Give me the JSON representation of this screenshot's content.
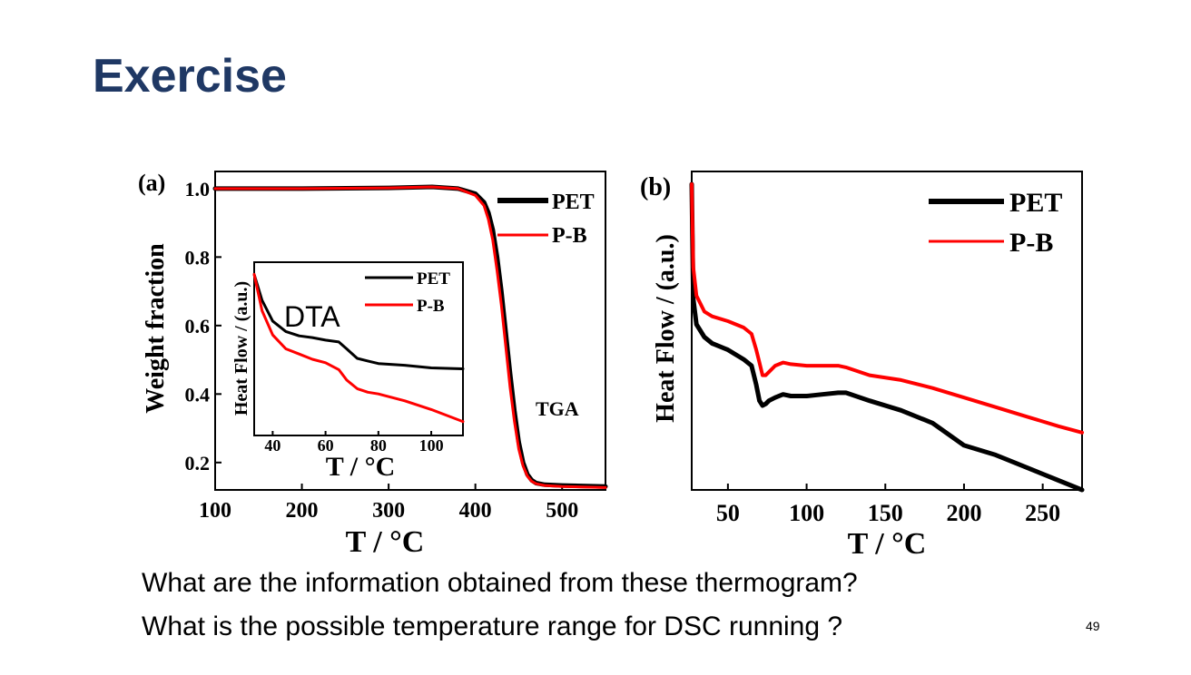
{
  "slide": {
    "title": "Exercise",
    "questions": [
      "What are the information obtained from these thermogram?",
      "What is the possible temperature range for DSC running ?"
    ],
    "page_number": "49"
  },
  "colors": {
    "title": "#1f3864",
    "PET": "#000000",
    "P-B": "#ff0000"
  },
  "chart_data": [
    {
      "id": "a",
      "panel_label": "(a)",
      "type": "line",
      "title": "",
      "xlabel": "T / °C",
      "ylabel": "Weight fraction",
      "xlim": [
        100,
        550
      ],
      "ylim": [
        0.12,
        1.05
      ],
      "xticks": [
        100,
        200,
        300,
        400,
        500
      ],
      "yticks": [
        0.2,
        0.4,
        0.6,
        0.8,
        1.0
      ],
      "ytick_labels": [
        "0.2",
        "0.4",
        "0.6",
        "0.8",
        "1.0"
      ],
      "annotation": "TGA",
      "legend": [
        "PET",
        "P-B"
      ],
      "series": [
        {
          "name": "PET",
          "color": "#000000",
          "x": [
            100,
            200,
            300,
            350,
            380,
            400,
            410,
            415,
            420,
            425,
            430,
            435,
            440,
            445,
            450,
            455,
            460,
            465,
            470,
            480,
            500,
            550
          ],
          "y": [
            1.0,
            1.0,
            1.002,
            1.005,
            1.0,
            0.985,
            0.96,
            0.93,
            0.88,
            0.8,
            0.7,
            0.58,
            0.46,
            0.35,
            0.26,
            0.2,
            0.165,
            0.148,
            0.14,
            0.135,
            0.133,
            0.13
          ]
        },
        {
          "name": "P-B",
          "color": "#ff0000",
          "x": [
            100,
            200,
            300,
            350,
            380,
            400,
            410,
            415,
            420,
            425,
            430,
            435,
            440,
            445,
            450,
            455,
            460,
            465,
            470,
            480,
            500,
            550
          ],
          "y": [
            1.0,
            1.0,
            1.002,
            1.005,
            1.0,
            0.98,
            0.95,
            0.91,
            0.85,
            0.76,
            0.66,
            0.54,
            0.42,
            0.32,
            0.24,
            0.19,
            0.16,
            0.145,
            0.138,
            0.133,
            0.13,
            0.127
          ]
        }
      ]
    },
    {
      "id": "a-inset",
      "type": "line",
      "title": "DTA",
      "xlabel": "T / °C",
      "ylabel": "Heat Flow / (a.u.)",
      "xlim": [
        33,
        112
      ],
      "ylim": [
        0,
        1
      ],
      "xticks": [
        40,
        60,
        80,
        100
      ],
      "legend": [
        "PET",
        "P-B"
      ],
      "series": [
        {
          "name": "PET",
          "color": "#000000",
          "x": [
            33,
            36,
            40,
            45,
            50,
            55,
            60,
            65,
            68,
            72,
            76,
            80,
            90,
            100,
            112
          ],
          "y": [
            0.93,
            0.78,
            0.66,
            0.6,
            0.575,
            0.565,
            0.55,
            0.54,
            0.5,
            0.445,
            0.43,
            0.415,
            0.405,
            0.39,
            0.385
          ]
        },
        {
          "name": "P-B",
          "color": "#ff0000",
          "x": [
            33,
            36,
            40,
            45,
            50,
            55,
            60,
            65,
            68,
            72,
            76,
            80,
            90,
            100,
            112
          ],
          "y": [
            0.93,
            0.72,
            0.58,
            0.5,
            0.47,
            0.44,
            0.42,
            0.38,
            0.32,
            0.27,
            0.25,
            0.24,
            0.2,
            0.15,
            0.08
          ]
        }
      ]
    },
    {
      "id": "b",
      "panel_label": "(b)",
      "type": "line",
      "title": "",
      "xlabel": "T / °C",
      "ylabel": "Heat Flow / (a.u.)",
      "xlim": [
        27,
        275
      ],
      "ylim": [
        0,
        1
      ],
      "xticks": [
        50,
        100,
        150,
        200,
        250
      ],
      "legend": [
        "PET",
        "P-B"
      ],
      "series": [
        {
          "name": "PET",
          "color": "#000000",
          "x": [
            27,
            28,
            30,
            35,
            40,
            50,
            60,
            65,
            68,
            70,
            72,
            74,
            76,
            80,
            85,
            90,
            100,
            110,
            120,
            125,
            140,
            160,
            180,
            200,
            220,
            240,
            260,
            275
          ],
          "y": [
            0.96,
            0.6,
            0.52,
            0.48,
            0.46,
            0.44,
            0.41,
            0.39,
            0.33,
            0.28,
            0.265,
            0.27,
            0.28,
            0.29,
            0.3,
            0.295,
            0.295,
            0.3,
            0.305,
            0.305,
            0.28,
            0.25,
            0.21,
            0.14,
            0.11,
            0.07,
            0.03,
            0.0
          ]
        },
        {
          "name": "P-B",
          "color": "#ff0000",
          "x": [
            27,
            28,
            30,
            35,
            40,
            50,
            60,
            65,
            68,
            70,
            72,
            74,
            76,
            80,
            85,
            90,
            100,
            110,
            120,
            125,
            140,
            160,
            180,
            200,
            220,
            240,
            260,
            275
          ],
          "y": [
            0.96,
            0.7,
            0.61,
            0.56,
            0.545,
            0.53,
            0.51,
            0.49,
            0.44,
            0.4,
            0.36,
            0.36,
            0.37,
            0.39,
            0.4,
            0.395,
            0.39,
            0.39,
            0.39,
            0.385,
            0.36,
            0.345,
            0.32,
            0.29,
            0.26,
            0.23,
            0.2,
            0.18
          ]
        }
      ]
    }
  ]
}
